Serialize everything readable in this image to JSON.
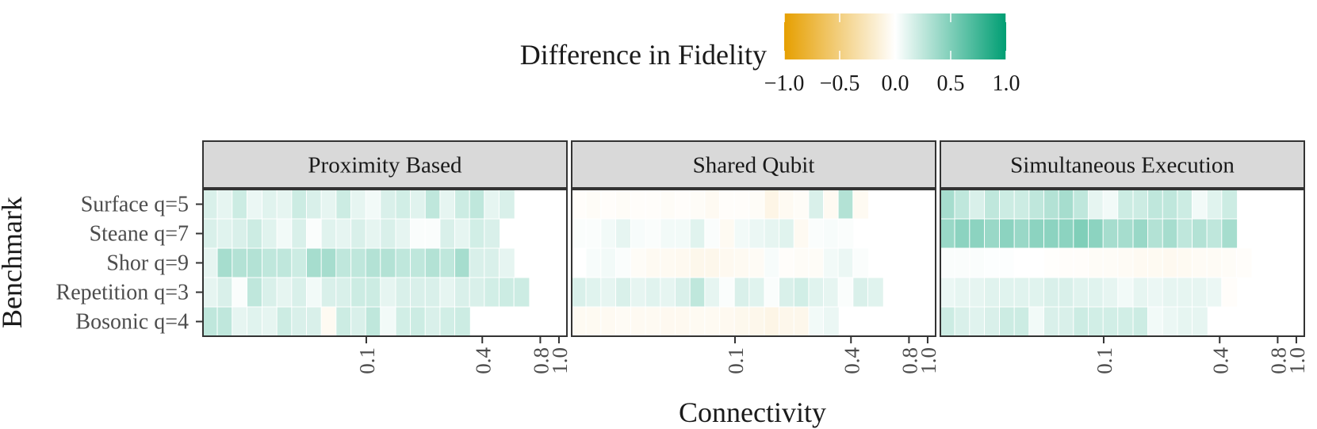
{
  "chart_data": {
    "type": "heatmap",
    "xlabel": "Connectivity",
    "ylabel": "Benchmark",
    "x_scale": "log",
    "x_ticks": [
      0.1,
      0.4,
      0.8,
      1.0
    ],
    "x_tick_labels": [
      "0.1",
      "0.4",
      "0.8",
      "1.0"
    ],
    "x_tick_label_rotation": "vertical",
    "x_cells": [
      0.0155,
      0.0185,
      0.0221,
      0.0264,
      0.0316,
      0.0377,
      0.045,
      0.0537,
      0.0641,
      0.0765,
      0.0914,
      0.109,
      0.13,
      0.156,
      0.186,
      0.222,
      0.265,
      0.316,
      0.377,
      0.45,
      0.537,
      0.641,
      0.765,
      0.914
    ],
    "benchmarks": [
      "Surface q=5",
      "Steane q=7",
      "Shor q=9",
      "Repetition q=3",
      "Bosonic q=4"
    ],
    "legend": {
      "title": "Difference in Fidelity",
      "position": "top",
      "ticks": [
        -1.0,
        -0.5,
        0.0,
        0.5,
        1.0
      ],
      "tick_labels": [
        "−1.0",
        "−0.5",
        "0.0",
        "0.5",
        "1.0"
      ],
      "colors": {
        "low": "#E69F00",
        "mid": "#FFFFFF",
        "high": "#009E73"
      },
      "limits": [
        -1.0,
        1.0
      ]
    },
    "panels": [
      {
        "title": "Proximity Based",
        "rows": [
          {
            "benchmark": "Surface q=5",
            "values": [
              0.15,
              0.1,
              0.2,
              0.08,
              0.12,
              0.1,
              0.2,
              0.15,
              0.1,
              0.2,
              0.1,
              0.05,
              0.15,
              0.18,
              0.12,
              0.25,
              0.1,
              0.2,
              0.25,
              0.1,
              0.15,
              null,
              null,
              null
            ]
          },
          {
            "benchmark": "Steane q=7",
            "values": [
              0.15,
              0.12,
              0.15,
              0.2,
              0.12,
              0.05,
              0.15,
              0.02,
              0.12,
              0.1,
              0.15,
              0.1,
              0.15,
              0.1,
              0.02,
              0.02,
              0.15,
              0.1,
              0.18,
              0.15,
              null,
              null,
              null,
              null
            ]
          },
          {
            "benchmark": "Shor q=9",
            "values": [
              0.1,
              0.35,
              0.3,
              0.3,
              0.25,
              0.25,
              0.2,
              0.35,
              0.35,
              0.25,
              0.25,
              0.3,
              0.3,
              0.25,
              0.25,
              0.3,
              0.25,
              0.35,
              0.15,
              0.15,
              0.1,
              null,
              null,
              null
            ]
          },
          {
            "benchmark": "Repetition q=3",
            "values": [
              0.1,
              0.15,
              0.02,
              0.25,
              0.15,
              0.1,
              0.15,
              0.05,
              0.15,
              0.15,
              0.2,
              0.2,
              0.1,
              0.15,
              0.15,
              0.15,
              0.1,
              0.15,
              0.15,
              0.18,
              0.2,
              0.2,
              null,
              null
            ]
          },
          {
            "benchmark": "Bosonic q=4",
            "values": [
              0.25,
              0.25,
              0.1,
              0.12,
              0.1,
              0.2,
              0.15,
              0.15,
              -0.05,
              0.2,
              0.15,
              0.25,
              0.05,
              0.18,
              0.2,
              0.15,
              0.18,
              0.2,
              null,
              null,
              null,
              null,
              null,
              null
            ]
          }
        ]
      },
      {
        "title": "Shared Qubit",
        "rows": [
          {
            "benchmark": "Surface q=5",
            "values": [
              -0.02,
              -0.03,
              -0.02,
              -0.03,
              -0.02,
              -0.02,
              -0.03,
              -0.02,
              -0.03,
              -0.05,
              -0.02,
              -0.02,
              -0.03,
              -0.1,
              -0.05,
              -0.03,
              0.15,
              -0.05,
              0.3,
              -0.05,
              null,
              null,
              null,
              null
            ]
          },
          {
            "benchmark": "Steane q=7",
            "values": [
              0.02,
              0.02,
              0.05,
              0.1,
              0.03,
              0.02,
              0.05,
              0.05,
              0.12,
              0.02,
              -0.05,
              0.05,
              0.08,
              0.1,
              0.12,
              -0.05,
              0.02,
              0.03,
              0.02,
              null,
              null,
              null,
              null,
              null
            ]
          },
          {
            "benchmark": "Shor q=9",
            "values": [
              null,
              0.03,
              0.05,
              0.02,
              -0.03,
              -0.05,
              -0.05,
              -0.06,
              -0.08,
              -0.08,
              -0.06,
              -0.05,
              -0.04,
              0.03,
              -0.02,
              -0.03,
              -0.03,
              0.05,
              0.08,
              0.02,
              null,
              null,
              null,
              null
            ]
          },
          {
            "benchmark": "Repetition q=3",
            "values": [
              0.15,
              0.12,
              0.1,
              0.15,
              0.1,
              0.12,
              0.1,
              0.15,
              0.25,
              0.1,
              0.02,
              0.15,
              0.12,
              0.02,
              0.15,
              0.18,
              0.12,
              0.1,
              0.02,
              0.15,
              0.12,
              null,
              null,
              null
            ]
          },
          {
            "benchmark": "Bosonic q=4",
            "values": [
              -0.05,
              -0.05,
              -0.05,
              -0.04,
              -0.05,
              -0.05,
              -0.06,
              -0.06,
              -0.05,
              -0.05,
              -0.06,
              -0.07,
              -0.08,
              -0.1,
              -0.08,
              -0.08,
              0.05,
              0.08,
              null,
              null,
              null,
              null,
              null,
              null
            ]
          }
        ]
      },
      {
        "title": "Simultaneous Execution",
        "rows": [
          {
            "benchmark": "Surface q=5",
            "values": [
              0.35,
              0.25,
              0.15,
              0.25,
              0.2,
              0.2,
              0.25,
              0.3,
              0.35,
              0.25,
              0.1,
              0.05,
              0.2,
              0.2,
              0.25,
              0.25,
              0.2,
              0.05,
              0.12,
              0.2,
              null,
              null,
              null,
              null
            ]
          },
          {
            "benchmark": "Steane q=7",
            "values": [
              0.4,
              0.45,
              0.45,
              0.4,
              0.45,
              0.4,
              0.45,
              0.45,
              0.45,
              0.5,
              0.45,
              0.35,
              0.35,
              0.4,
              0.3,
              0.35,
              0.25,
              0.3,
              0.25,
              0.35,
              null,
              null,
              null,
              null
            ]
          },
          {
            "benchmark": "Shor q=9",
            "values": [
              0.02,
              0.02,
              0.02,
              0.01,
              0.01,
              0.0,
              0.0,
              -0.01,
              -0.02,
              -0.02,
              -0.03,
              -0.03,
              -0.04,
              -0.05,
              -0.05,
              -0.06,
              -0.05,
              -0.04,
              -0.04,
              -0.03,
              -0.02,
              null,
              null,
              null
            ]
          },
          {
            "benchmark": "Repetition q=3",
            "values": [
              0.08,
              0.1,
              0.1,
              0.12,
              0.12,
              0.12,
              0.12,
              0.15,
              0.15,
              0.12,
              0.12,
              0.1,
              0.05,
              0.1,
              0.08,
              0.1,
              0.1,
              0.1,
              0.08,
              -0.02,
              null,
              null,
              null,
              null
            ]
          },
          {
            "benchmark": "Bosonic q=4",
            "values": [
              0.2,
              0.15,
              0.12,
              0.15,
              0.2,
              0.2,
              0.05,
              0.15,
              0.15,
              0.2,
              0.18,
              0.18,
              0.18,
              0.2,
              0.05,
              0.08,
              0.1,
              0.1,
              null,
              null,
              null,
              null,
              null,
              null
            ]
          }
        ]
      }
    ]
  }
}
